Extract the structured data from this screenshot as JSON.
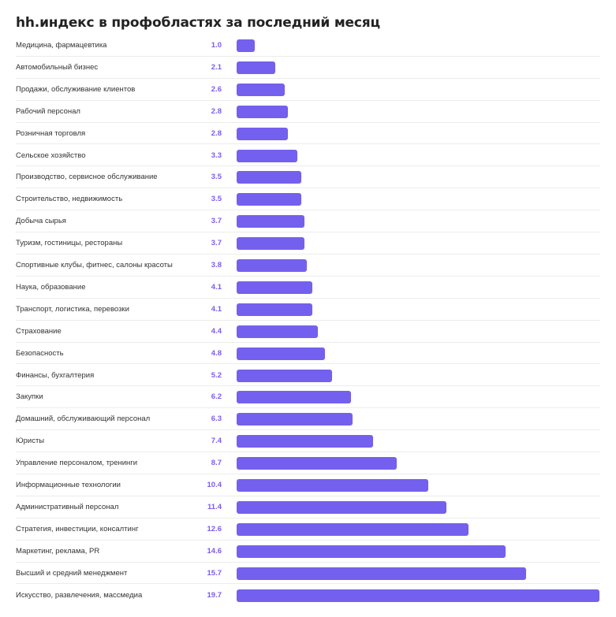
{
  "chart_data": {
    "type": "bar",
    "orientation": "horizontal",
    "title": "hh.индекс в профобластях за последний месяц",
    "xlim": [
      0,
      19.7
    ],
    "grid": false,
    "legend": "none",
    "bar_color": "#7460ee",
    "value_label_color": "#7b5cf0",
    "categories": [
      "Медицина, фармацевтика",
      "Автомобильный бизнес",
      "Продажи, обслуживание клиентов",
      "Рабочий персонал",
      "Розничная торговля",
      "Сельское хозяйство",
      "Производство, сервисное обслуживание",
      "Строительство, недвижимость",
      "Добыча сырья",
      "Туризм, гостиницы, рестораны",
      "Спортивные клубы, фитнес, салоны красоты",
      "Наука, образование",
      "Транспорт, логистика, перевозки",
      "Страхование",
      "Безопасность",
      "Финансы, бухгалтерия",
      "Закупки",
      "Домашний, обслуживающий персонал",
      "Юристы",
      "Управление персоналом, тренинги",
      "Информационные технологии",
      "Административный персонал",
      "Стратегия, инвестиции, консалтинг",
      "Маркетинг, реклама, PR",
      "Высший и средний менеджмент",
      "Искусство, развлечения, массмедиа"
    ],
    "values": [
      1.0,
      2.1,
      2.6,
      2.8,
      2.8,
      3.3,
      3.5,
      3.5,
      3.7,
      3.7,
      3.8,
      4.1,
      4.1,
      4.4,
      4.8,
      5.2,
      6.2,
      6.3,
      7.4,
      8.7,
      10.4,
      11.4,
      12.6,
      14.6,
      15.7,
      19.7
    ],
    "value_labels": [
      "1.0",
      "2.1",
      "2.6",
      "2.8",
      "2.8",
      "3.3",
      "3.5",
      "3.5",
      "3.7",
      "3.7",
      "3.8",
      "4.1",
      "4.1",
      "4.4",
      "4.8",
      "5.2",
      "6.2",
      "6.3",
      "7.4",
      "8.7",
      "10.4",
      "11.4",
      "12.6",
      "14.6",
      "15.7",
      "19.7"
    ]
  }
}
